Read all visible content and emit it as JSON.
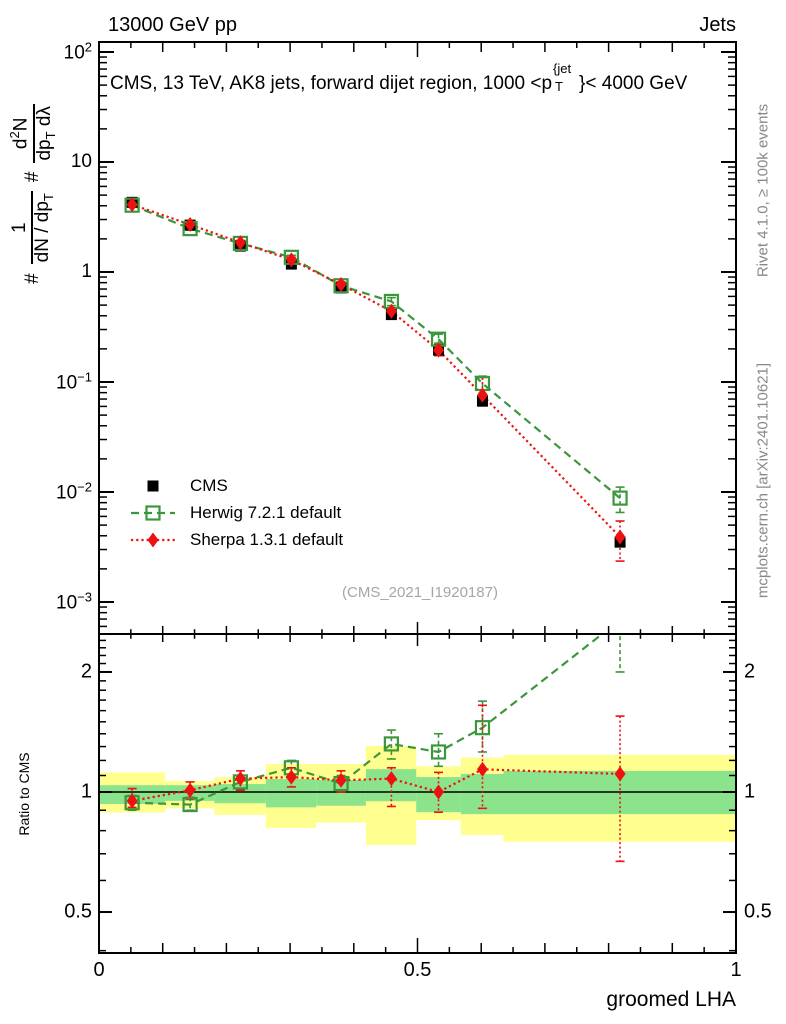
{
  "header": {
    "left": "13000 GeV pp",
    "right": "Jets"
  },
  "title": {
    "pre": "CMS, 13 TeV, AK8 jets, forward dijet region, 1000 <p",
    "sup": "{jet",
    "sub": "T",
    "post": "}< 4000 GeV"
  },
  "ylabel": {
    "hash1": "#",
    "f1_num": "1",
    "f1_den_pre": "dN / dp",
    "f1_den_sub": "T",
    "hash2": "#",
    "f2_num_pre": "d",
    "f2_num_sup": "2",
    "f2_num_post": "N",
    "f2_den_pre": "dp",
    "f2_den_sub": "T",
    "f2_den_post": " dλ"
  },
  "ratio_ylabel": "Ratio to CMS",
  "xlabel": "groomed LHA",
  "watermark": "(CMS_2021_I1920187)",
  "credits_top": "Rivet 4.1.0, ≥ 100k events",
  "credits_bottom": "mcplots.cern.ch [arXiv:2401.10621]",
  "axes": {
    "x_tick_labels": [
      {
        "label": "0",
        "v": 0
      },
      {
        "label": "0.5",
        "v": 0.5
      },
      {
        "label": "1",
        "v": 1
      }
    ],
    "main_y_tick_labels": [
      {
        "base": "10",
        "exp": "2",
        "v": 100
      },
      {
        "base": "10",
        "exp": "",
        "v": 10
      },
      {
        "base": "1",
        "exp": "",
        "v": 1
      },
      {
        "base": "10",
        "exp": "−1",
        "v": 0.1
      },
      {
        "base": "10",
        "exp": "−2",
        "v": 0.01
      },
      {
        "base": "10",
        "exp": "−3",
        "v": 0.001
      }
    ],
    "ratio_y_tick_labels": [
      {
        "label": "2",
        "v": 2
      },
      {
        "label": "1",
        "v": 1
      },
      {
        "label": "0.5",
        "v": 0.5
      }
    ]
  },
  "chart_data": {
    "type": "scatter",
    "layout": "two-panel: main log-y spectrum + ratio panel (log-y), x linear 0..1",
    "title": "CMS, 13 TeV, AK8 jets, forward dijet region, 1000 < pT{jet} < 4000 GeV",
    "xlabel": "groomed LHA",
    "ylabel": "# 1/(dN/dpT) # d2N/(dpT dλ)",
    "ratio_label": "Ratio to CMS",
    "xlim": [
      0,
      1
    ],
    "main_ylim": [
      0.00052,
      130
    ],
    "ratio_ylim": [
      0.39,
      2.5
    ],
    "x": [
      0.052,
      0.143,
      0.222,
      0.302,
      0.38,
      0.459,
      0.533,
      0.602,
      0.818
    ],
    "bin_edges": [
      0,
      0.104,
      0.181,
      0.262,
      0.341,
      0.419,
      0.498,
      0.568,
      0.635,
      1.0
    ],
    "series": [
      {
        "name": "CMS",
        "color": "#000000",
        "marker": "square-filled",
        "line": "none",
        "values": [
          4.3,
          2.67,
          1.72,
          1.18,
          0.715,
          0.41,
          0.195,
          0.067,
          0.0035
        ]
      },
      {
        "name": "Herwig 7.2.1 default",
        "color": "#3c963c",
        "marker": "square-open",
        "line": "dashed",
        "values": [
          4.05,
          2.48,
          1.82,
          1.36,
          0.75,
          0.54,
          0.245,
          0.097,
          0.0088
        ],
        "ratio": [
          0.94,
          0.93,
          1.06,
          1.15,
          1.05,
          1.32,
          1.26,
          1.45,
          2.7
        ],
        "ratio_err": [
          [
            0.9,
            0.98
          ],
          [
            0.9,
            0.97
          ],
          [
            1.02,
            1.1
          ],
          [
            1.1,
            1.2
          ],
          [
            1.01,
            1.1
          ],
          [
            1.21,
            1.43
          ],
          [
            1.16,
            1.4
          ],
          [
            1.26,
            1.69
          ],
          [
            2.0,
            3.4
          ]
        ]
      },
      {
        "name": "Sherpa 1.3.1 default",
        "color": "#ee1111",
        "marker": "diamond-filled",
        "line": "dotted",
        "values": [
          4.1,
          2.7,
          1.85,
          1.29,
          0.77,
          0.44,
          0.195,
          0.076,
          0.0039
        ],
        "ratio": [
          0.95,
          1.01,
          1.08,
          1.09,
          1.07,
          1.08,
          1.0,
          1.14,
          1.11
        ],
        "ratio_err": [
          [
            0.915,
            1.02
          ],
          [
            0.96,
            1.06
          ],
          [
            1.01,
            1.13
          ],
          [
            1.03,
            1.15
          ],
          [
            1.0,
            1.13
          ],
          [
            0.92,
            1.15
          ],
          [
            0.89,
            1.12
          ],
          [
            0.91,
            1.65
          ],
          [
            0.67,
            1.55
          ]
        ]
      }
    ],
    "ratio_bands": {
      "note": "per-bin uncertainty bands around ratio=1; outer yellow = total, inner green = stat",
      "yellow": [
        [
          0.888,
          1.12
        ],
        [
          0.91,
          1.065
        ],
        [
          0.876,
          1.09
        ],
        [
          0.813,
          1.176
        ],
        [
          0.838,
          1.176
        ],
        [
          0.736,
          1.305
        ],
        [
          0.85,
          1.16
        ],
        [
          0.78,
          1.22
        ],
        [
          0.75,
          1.24
        ]
      ],
      "green": [
        [
          0.933,
          1.04
        ],
        [
          0.95,
          1.04
        ],
        [
          0.937,
          1.047
        ],
        [
          0.915,
          1.078
        ],
        [
          0.924,
          1.072
        ],
        [
          0.948,
          1.141
        ],
        [
          0.89,
          1.09
        ],
        [
          0.88,
          1.11
        ],
        [
          0.88,
          1.13
        ]
      ]
    },
    "colors": {
      "band_yellow": "#ffff8f",
      "band_green": "#8be48b",
      "reference_line": "#000000"
    },
    "legend_position": "middle-left of main panel",
    "grid": false
  }
}
